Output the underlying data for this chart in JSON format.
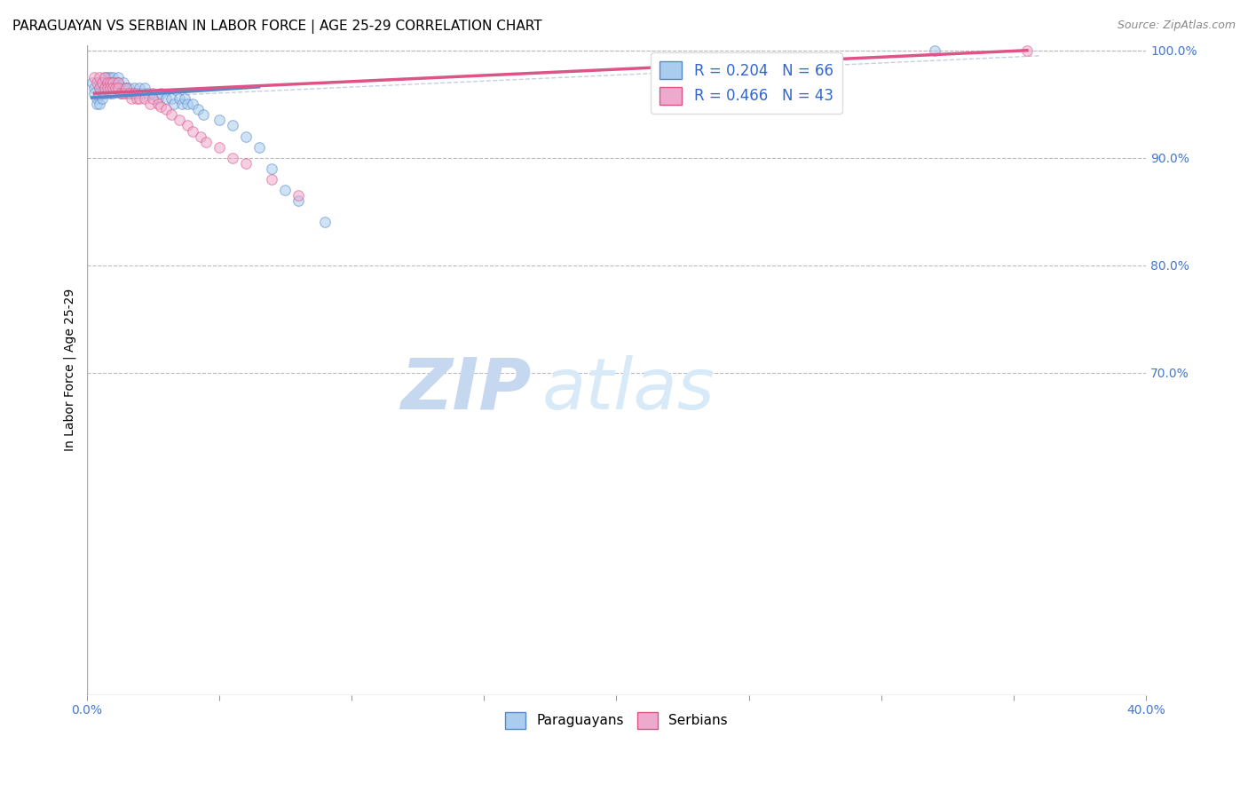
{
  "title": "PARAGUAYAN VS SERBIAN IN LABOR FORCE | AGE 25-29 CORRELATION CHART",
  "source": "Source: ZipAtlas.com",
  "ylabel": "In Labor Force | Age 25-29",
  "xlim": [
    0.0,
    0.4
  ],
  "ylim": [
    0.4,
    1.005
  ],
  "xticks": [
    0.0,
    0.05,
    0.1,
    0.15,
    0.2,
    0.25,
    0.3,
    0.35,
    0.4
  ],
  "yticks": [
    0.7,
    0.8,
    0.9,
    1.0
  ],
  "legend_entries": [
    {
      "label": "R = 0.204   N = 66",
      "color_fill": "#a8c8f5",
      "color_edge": "#6699dd"
    },
    {
      "label": "R = 0.466   N = 43",
      "color_fill": "#f5a8c0",
      "color_edge": "#ee6699"
    }
  ],
  "legend_footer": [
    "Paraguayans",
    "Serbians"
  ],
  "blue_scatter_x": [
    0.002,
    0.003,
    0.003,
    0.004,
    0.004,
    0.005,
    0.005,
    0.005,
    0.006,
    0.006,
    0.006,
    0.007,
    0.007,
    0.007,
    0.007,
    0.008,
    0.008,
    0.008,
    0.009,
    0.009,
    0.009,
    0.009,
    0.01,
    0.01,
    0.01,
    0.01,
    0.011,
    0.011,
    0.012,
    0.012,
    0.013,
    0.013,
    0.014,
    0.014,
    0.015,
    0.015,
    0.016,
    0.017,
    0.018,
    0.019,
    0.02,
    0.021,
    0.022,
    0.023,
    0.025,
    0.027,
    0.028,
    0.03,
    0.032,
    0.033,
    0.035,
    0.036,
    0.037,
    0.038,
    0.04,
    0.042,
    0.044,
    0.05,
    0.055,
    0.06,
    0.065,
    0.07,
    0.075,
    0.08,
    0.09,
    0.32
  ],
  "blue_scatter_y": [
    0.97,
    0.965,
    0.96,
    0.955,
    0.95,
    0.97,
    0.96,
    0.95,
    0.97,
    0.96,
    0.955,
    0.975,
    0.97,
    0.965,
    0.96,
    0.975,
    0.97,
    0.965,
    0.975,
    0.97,
    0.965,
    0.96,
    0.975,
    0.97,
    0.965,
    0.96,
    0.97,
    0.965,
    0.975,
    0.97,
    0.965,
    0.96,
    0.97,
    0.965,
    0.965,
    0.96,
    0.965,
    0.96,
    0.965,
    0.96,
    0.965,
    0.96,
    0.965,
    0.96,
    0.96,
    0.955,
    0.96,
    0.955,
    0.955,
    0.95,
    0.955,
    0.95,
    0.955,
    0.95,
    0.95,
    0.945,
    0.94,
    0.935,
    0.93,
    0.92,
    0.91,
    0.89,
    0.87,
    0.86,
    0.84,
    1.0
  ],
  "pink_scatter_x": [
    0.003,
    0.004,
    0.005,
    0.005,
    0.006,
    0.007,
    0.007,
    0.008,
    0.008,
    0.009,
    0.009,
    0.01,
    0.01,
    0.011,
    0.012,
    0.012,
    0.013,
    0.014,
    0.015,
    0.016,
    0.017,
    0.018,
    0.019,
    0.02,
    0.022,
    0.024,
    0.025,
    0.027,
    0.028,
    0.03,
    0.032,
    0.035,
    0.038,
    0.04,
    0.043,
    0.045,
    0.05,
    0.055,
    0.06,
    0.07,
    0.08,
    0.24,
    0.355
  ],
  "pink_scatter_y": [
    0.975,
    0.97,
    0.975,
    0.965,
    0.97,
    0.975,
    0.965,
    0.97,
    0.965,
    0.97,
    0.965,
    0.97,
    0.965,
    0.965,
    0.97,
    0.965,
    0.96,
    0.96,
    0.965,
    0.96,
    0.955,
    0.96,
    0.955,
    0.955,
    0.955,
    0.95,
    0.955,
    0.95,
    0.948,
    0.945,
    0.94,
    0.935,
    0.93,
    0.925,
    0.92,
    0.915,
    0.91,
    0.9,
    0.895,
    0.88,
    0.865,
    0.975,
    1.0
  ],
  "blue_line_x": [
    0.002,
    0.065
  ],
  "blue_line_y": [
    0.956,
    0.966
  ],
  "pink_line_x": [
    0.003,
    0.355
  ],
  "pink_line_y": [
    0.96,
    1.0
  ],
  "diag_line_x": [
    0.003,
    0.36
  ],
  "diag_line_y": [
    0.955,
    0.995
  ],
  "scatter_size": 70,
  "scatter_alpha": 0.55,
  "blue_color": "#5588cc",
  "pink_color": "#dd5588",
  "blue_fill": "#aaccee",
  "pink_fill": "#eeaacc",
  "grid_color": "#bbbbbb",
  "background_color": "#ffffff",
  "title_fontsize": 11,
  "axis_label_fontsize": 10,
  "tick_fontsize": 10,
  "source_fontsize": 9
}
